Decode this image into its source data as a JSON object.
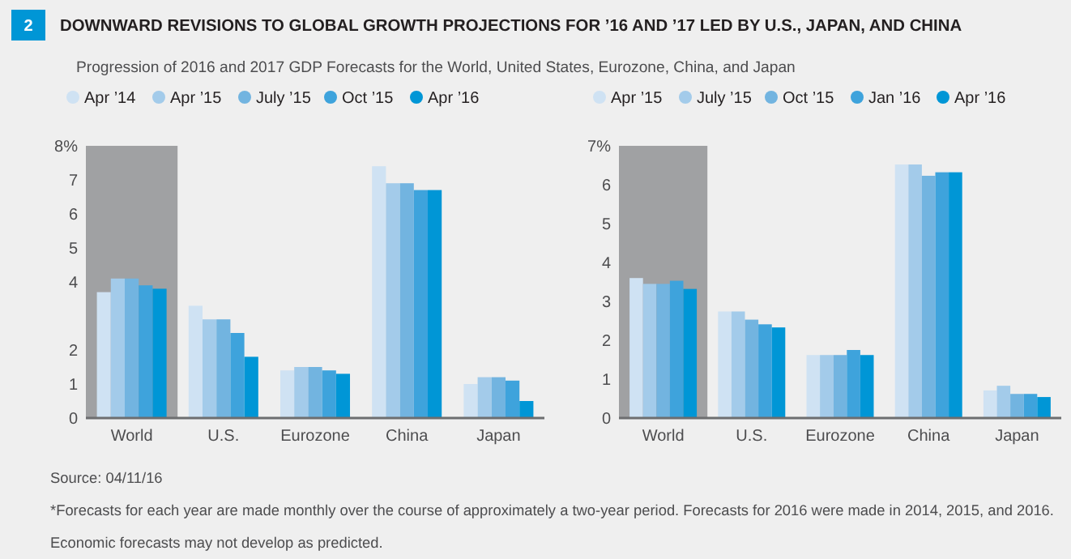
{
  "chart_data": [
    {
      "type": "bar",
      "title": "DOWNWARD REVISIONS TO GLOBAL GROWTH PROJECTIONS FOR ’16 AND ’17 LED BY U.S., JAPAN, AND CHINA",
      "subtitle": "Progression of 2016 and 2017 GDP Forecasts for the World, United States, Eurozone, China, and Japan",
      "annotations": [
        "2",
        "Source: 04/11/16",
        "*Forecasts for each year are made monthly over the course of approximately a two-year period. Forecasts for 2016 were made in 2014, 2015, and 2016.",
        "Economic forecasts may not develop as predicted."
      ],
      "categories": [
        "World",
        "U.S.",
        "Eurozone",
        "China",
        "Japan"
      ],
      "series": [
        {
          "name": "Apr ’14",
          "color": "#cfe2f3",
          "values": [
            3.7,
            3.3,
            1.4,
            7.4,
            1.0
          ]
        },
        {
          "name": "Apr ’15",
          "color": "#a3cbea",
          "values": [
            4.1,
            2.9,
            1.5,
            6.9,
            1.2
          ]
        },
        {
          "name": "July ’15",
          "color": "#72b4e0",
          "values": [
            4.1,
            2.9,
            1.5,
            6.9,
            1.2
          ]
        },
        {
          "name": "Oct ’15",
          "color": "#3ea3dc",
          "values": [
            3.9,
            2.5,
            1.4,
            6.7,
            1.1
          ]
        },
        {
          "name": "Apr ’16",
          "color": "#0096d6",
          "values": [
            3.8,
            1.8,
            1.3,
            6.7,
            0.5
          ]
        }
      ],
      "bands": [
        {
          "axis": "x",
          "from": "World",
          "to": "World",
          "color": "#a0a1a3"
        }
      ],
      "ylim": [
        0,
        8
      ],
      "yticks": [
        0,
        1,
        2,
        4,
        5,
        6,
        7,
        {
          "value": 8,
          "label": "8%"
        }
      ],
      "legend": "top",
      "grid": false
    },
    {
      "type": "bar",
      "categories": [
        "World",
        "U.S.",
        "Eurozone",
        "China",
        "Japan"
      ],
      "series": [
        {
          "name": "Apr ’15",
          "color": "#cfe2f3",
          "values": [
            3.6,
            2.74,
            1.62,
            6.52,
            0.71
          ]
        },
        {
          "name": "July ’15",
          "color": "#a3cbea",
          "values": [
            3.45,
            2.74,
            1.62,
            6.52,
            0.83
          ]
        },
        {
          "name": "Oct ’15",
          "color": "#72b4e0",
          "values": [
            3.45,
            2.53,
            1.62,
            6.23,
            0.62
          ]
        },
        {
          "name": "Jan ’16",
          "color": "#3ea3dc",
          "values": [
            3.53,
            2.41,
            1.75,
            6.32,
            0.62
          ]
        },
        {
          "name": "Apr ’16",
          "color": "#0096d6",
          "values": [
            3.32,
            2.33,
            1.62,
            6.32,
            0.54
          ]
        }
      ],
      "bands": [
        {
          "axis": "x",
          "from": "World",
          "to": "World",
          "color": "#a0a1a3"
        }
      ],
      "ylim": [
        0,
        7
      ],
      "yticks": [
        0,
        1,
        2,
        3,
        4,
        5,
        6,
        {
          "value": 7,
          "label": "7%"
        }
      ],
      "legend": "top",
      "grid": false
    }
  ]
}
